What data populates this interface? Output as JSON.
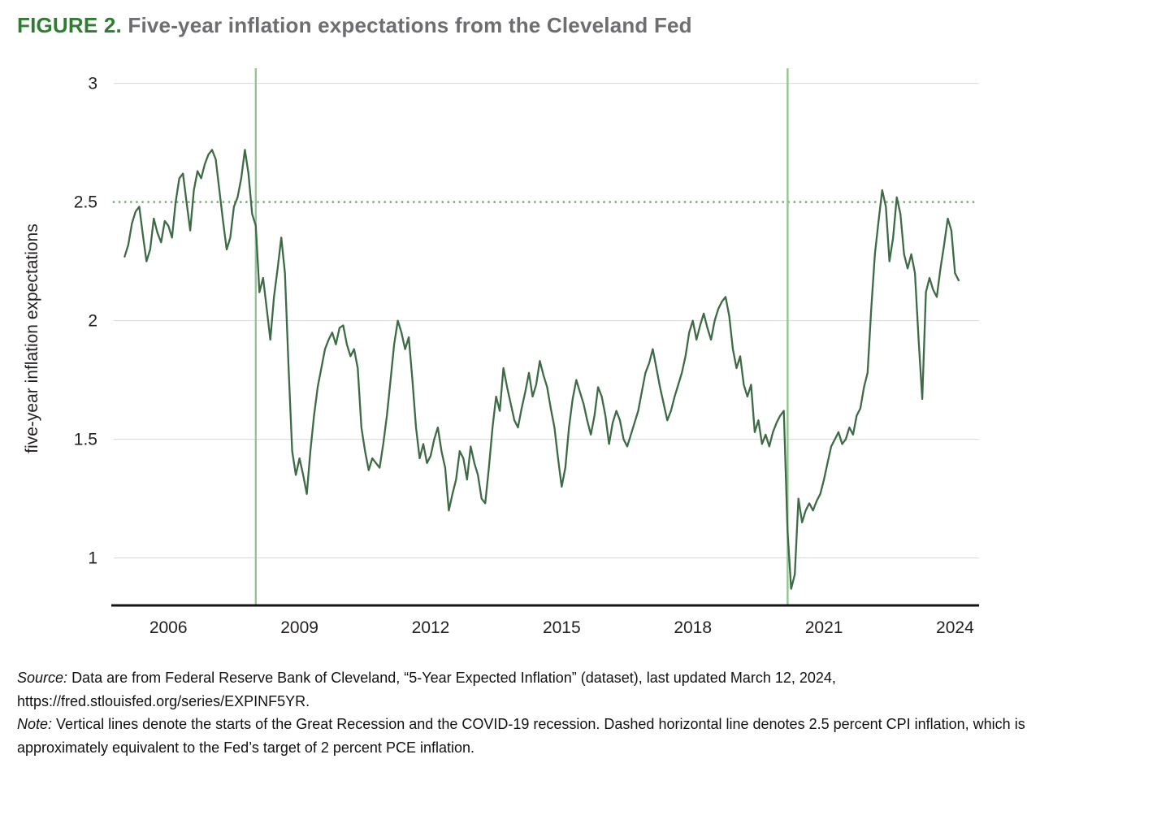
{
  "header": {
    "figure_label": "FIGURE 2.",
    "title": "Five-year inflation expectations from the Cleveland Fed"
  },
  "footer": {
    "source_label": "Source:",
    "source_line1": "Data are from Federal Reserve Bank of Cleveland, “5-Year Expected Inflation” (dataset), last updated March 12, 2024,",
    "source_line2": "https://fred.stlouisfed.org/series/EXPINF5YR.",
    "note_label": "Note:",
    "note_text": "Vertical lines denote the starts of the Great Recession and the COVID-19 recession. Dashed horizontal line denotes 2.5 percent CPI inflation, which is approximately equivalent to the Fed’s target of 2 percent PCE inflation."
  },
  "colors": {
    "figure_label_green": "#2e7d32",
    "title_gray": "#6d6e71",
    "series_line": "#3d6b45",
    "recession_line": "#93c493",
    "target_dotted": "#72aa74",
    "gridline": "#d8d8d8",
    "axis": "#141414",
    "tick_text": "#231f20"
  },
  "chart_data": {
    "type": "line",
    "title": "Five-year inflation expectations from the Cleveland Fed",
    "xlabel": "",
    "ylabel": "five-year inflation expectations",
    "xlim": [
      2004.75,
      2024.55
    ],
    "ylim": [
      0.8,
      3.05
    ],
    "xticks": [
      2006,
      2009,
      2012,
      2015,
      2018,
      2021,
      2024
    ],
    "yticks": [
      1,
      1.5,
      2,
      2.5,
      3
    ],
    "ytick_labels": [
      "1",
      "1.5",
      "2",
      "2.5",
      "3"
    ],
    "grid": "horizontal",
    "legend": "none",
    "target_line": {
      "y": 2.5,
      "style": "dotted",
      "meaning": "2.5 percent CPI inflation (≈ Fed 2 percent PCE target)"
    },
    "vertical_lines": [
      {
        "x": 2008.0,
        "label": "Great Recession start"
      },
      {
        "x": 2020.17,
        "label": "COVID-19 recession start"
      }
    ],
    "series": [
      {
        "name": "5-Year Expected Inflation",
        "frequency": "monthly",
        "start_year": 2005,
        "start_month": 1,
        "values": [
          2.27,
          2.32,
          2.41,
          2.46,
          2.48,
          2.36,
          2.25,
          2.3,
          2.43,
          2.37,
          2.33,
          2.42,
          2.4,
          2.35,
          2.5,
          2.6,
          2.62,
          2.5,
          2.38,
          2.55,
          2.63,
          2.6,
          2.66,
          2.7,
          2.72,
          2.68,
          2.55,
          2.42,
          2.3,
          2.35,
          2.48,
          2.52,
          2.6,
          2.72,
          2.62,
          2.45,
          2.4,
          2.12,
          2.18,
          2.05,
          1.92,
          2.1,
          2.22,
          2.35,
          2.2,
          1.8,
          1.45,
          1.35,
          1.42,
          1.35,
          1.27,
          1.45,
          1.6,
          1.72,
          1.8,
          1.88,
          1.92,
          1.95,
          1.9,
          1.97,
          1.98,
          1.9,
          1.85,
          1.88,
          1.8,
          1.55,
          1.45,
          1.37,
          1.42,
          1.4,
          1.38,
          1.48,
          1.6,
          1.75,
          1.9,
          2.0,
          1.95,
          1.88,
          1.93,
          1.75,
          1.55,
          1.42,
          1.48,
          1.4,
          1.43,
          1.5,
          1.55,
          1.45,
          1.38,
          1.2,
          1.27,
          1.33,
          1.45,
          1.42,
          1.33,
          1.47,
          1.4,
          1.35,
          1.25,
          1.23,
          1.38,
          1.55,
          1.68,
          1.62,
          1.8,
          1.72,
          1.65,
          1.58,
          1.55,
          1.63,
          1.7,
          1.78,
          1.68,
          1.73,
          1.83,
          1.77,
          1.72,
          1.63,
          1.55,
          1.42,
          1.3,
          1.38,
          1.55,
          1.67,
          1.75,
          1.7,
          1.65,
          1.58,
          1.52,
          1.6,
          1.72,
          1.68,
          1.6,
          1.48,
          1.57,
          1.62,
          1.58,
          1.5,
          1.47,
          1.52,
          1.57,
          1.62,
          1.7,
          1.78,
          1.82,
          1.88,
          1.8,
          1.72,
          1.65,
          1.58,
          1.62,
          1.68,
          1.73,
          1.78,
          1.85,
          1.95,
          2.0,
          1.92,
          1.98,
          2.03,
          1.97,
          1.92,
          2.0,
          2.05,
          2.08,
          2.1,
          2.02,
          1.88,
          1.8,
          1.85,
          1.73,
          1.68,
          1.73,
          1.53,
          1.58,
          1.48,
          1.52,
          1.47,
          1.53,
          1.57,
          1.6,
          1.62,
          1.12,
          0.87,
          0.93,
          1.25,
          1.15,
          1.2,
          1.23,
          1.2,
          1.24,
          1.27,
          1.33,
          1.4,
          1.47,
          1.5,
          1.53,
          1.48,
          1.5,
          1.55,
          1.52,
          1.6,
          1.63,
          1.72,
          1.78,
          2.05,
          2.28,
          2.42,
          2.55,
          2.48,
          2.25,
          2.35,
          2.52,
          2.45,
          2.28,
          2.22,
          2.28,
          2.2,
          1.92,
          1.67,
          2.12,
          2.18,
          2.13,
          2.1,
          2.22,
          2.32,
          2.43,
          2.38,
          2.2,
          2.17
        ]
      }
    ]
  }
}
